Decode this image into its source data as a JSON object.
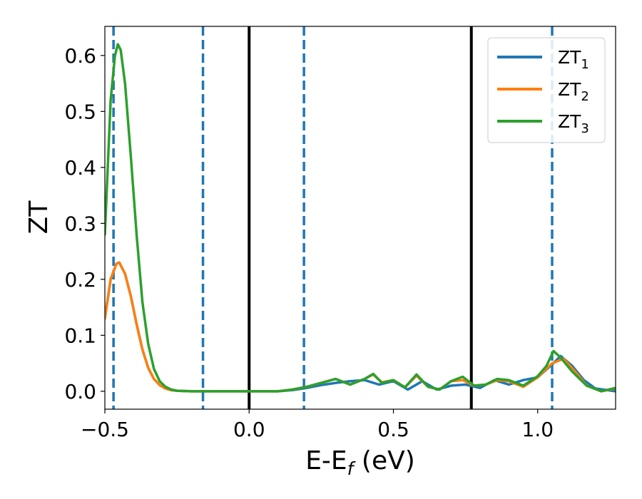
{
  "chart_data": {
    "type": "line",
    "title": "",
    "xlabel": "E-E",
    "xlabel_sub": "f",
    "xlabel_unit": " (eV)",
    "ylabel": "ZT",
    "xlim": [
      -0.5,
      1.27
    ],
    "ylim": [
      -0.032,
      0.652
    ],
    "xticks": [
      -0.5,
      0.0,
      0.5,
      1.0
    ],
    "xtick_labels": [
      "−0.5",
      "0.0",
      "0.5",
      "1.0"
    ],
    "yticks": [
      0.0,
      0.1,
      0.2,
      0.3,
      0.4,
      0.5,
      0.6
    ],
    "ytick_labels": [
      "0.0",
      "0.1",
      "0.2",
      "0.3",
      "0.4",
      "0.5",
      "0.6"
    ],
    "grid": false,
    "legend_position": "top-right",
    "vlines": [
      {
        "x": -0.47,
        "style": "dashed",
        "color": "#1f77b4"
      },
      {
        "x": -0.16,
        "style": "dashed",
        "color": "#1f77b4"
      },
      {
        "x": 0.19,
        "style": "dashed",
        "color": "#1f77b4"
      },
      {
        "x": 1.05,
        "style": "dashed",
        "color": "#1f77b4"
      },
      {
        "x": 0.0,
        "style": "solid",
        "color": "#000000"
      },
      {
        "x": 0.77,
        "style": "solid",
        "color": "#000000"
      }
    ],
    "series": [
      {
        "name": "ZT",
        "sub": "1",
        "color": "#1f77b4",
        "x": [
          -0.5,
          -0.48,
          -0.46,
          -0.45,
          -0.43,
          -0.41,
          -0.39,
          -0.37,
          -0.35,
          -0.33,
          -0.31,
          -0.29,
          -0.27,
          -0.25,
          -0.2,
          -0.1,
          0.0,
          0.1,
          0.15,
          0.2,
          0.25,
          0.3,
          0.35,
          0.4,
          0.45,
          0.5,
          0.55,
          0.6,
          0.65,
          0.7,
          0.75,
          0.8,
          0.85,
          0.9,
          0.95,
          1.0,
          1.05,
          1.08,
          1.12,
          1.16,
          1.2,
          1.27
        ],
        "y": [
          0.13,
          0.2,
          0.228,
          0.23,
          0.21,
          0.17,
          0.12,
          0.075,
          0.042,
          0.022,
          0.011,
          0.005,
          0.002,
          0.001,
          0.0,
          0.0,
          0.0,
          0.0,
          0.002,
          0.006,
          0.011,
          0.015,
          0.018,
          0.02,
          0.012,
          0.018,
          0.003,
          0.018,
          0.003,
          0.01,
          0.012,
          0.006,
          0.02,
          0.012,
          0.02,
          0.025,
          0.048,
          0.063,
          0.045,
          0.02,
          0.005,
          0.0
        ]
      },
      {
        "name": "ZT",
        "sub": "2",
        "color": "#ff7f0e",
        "x": [
          -0.5,
          -0.48,
          -0.46,
          -0.45,
          -0.43,
          -0.41,
          -0.39,
          -0.37,
          -0.35,
          -0.33,
          -0.31,
          -0.29,
          -0.27,
          -0.25,
          -0.2,
          -0.1,
          0.0,
          0.1,
          0.15,
          0.2,
          0.25,
          0.3,
          0.35,
          0.4,
          0.43,
          0.46,
          0.5,
          0.54,
          0.58,
          0.62,
          0.66,
          0.7,
          0.74,
          0.78,
          0.82,
          0.86,
          0.9,
          0.95,
          1.0,
          1.05,
          1.09,
          1.13,
          1.17,
          1.22,
          1.27
        ],
        "y": [
          0.13,
          0.2,
          0.228,
          0.23,
          0.21,
          0.17,
          0.12,
          0.075,
          0.042,
          0.022,
          0.011,
          0.005,
          0.002,
          0.001,
          0.0,
          0.0,
          0.0,
          0.0,
          0.003,
          0.008,
          0.015,
          0.022,
          0.012,
          0.022,
          0.03,
          0.016,
          0.02,
          0.007,
          0.028,
          0.008,
          0.003,
          0.018,
          0.02,
          0.01,
          0.012,
          0.02,
          0.018,
          0.008,
          0.025,
          0.05,
          0.058,
          0.035,
          0.01,
          0.0,
          0.005
        ]
      },
      {
        "name": "ZT",
        "sub": "3",
        "color": "#2ca02c",
        "x": [
          -0.5,
          -0.48,
          -0.465,
          -0.455,
          -0.445,
          -0.43,
          -0.41,
          -0.39,
          -0.37,
          -0.35,
          -0.33,
          -0.31,
          -0.29,
          -0.27,
          -0.25,
          -0.2,
          -0.1,
          0.0,
          0.1,
          0.15,
          0.2,
          0.25,
          0.3,
          0.35,
          0.4,
          0.43,
          0.46,
          0.5,
          0.54,
          0.58,
          0.62,
          0.66,
          0.7,
          0.74,
          0.78,
          0.82,
          0.86,
          0.9,
          0.95,
          1.0,
          1.03,
          1.055,
          1.08,
          1.12,
          1.17,
          1.22,
          1.27
        ],
        "y": [
          0.28,
          0.52,
          0.6,
          0.62,
          0.61,
          0.55,
          0.42,
          0.28,
          0.16,
          0.085,
          0.04,
          0.018,
          0.008,
          0.003,
          0.001,
          0.0,
          0.0,
          0.0,
          0.0,
          0.003,
          0.008,
          0.015,
          0.022,
          0.012,
          0.022,
          0.031,
          0.015,
          0.02,
          0.007,
          0.03,
          0.008,
          0.003,
          0.018,
          0.026,
          0.01,
          0.012,
          0.022,
          0.02,
          0.01,
          0.027,
          0.045,
          0.072,
          0.06,
          0.035,
          0.01,
          0.0,
          0.006
        ]
      }
    ]
  }
}
